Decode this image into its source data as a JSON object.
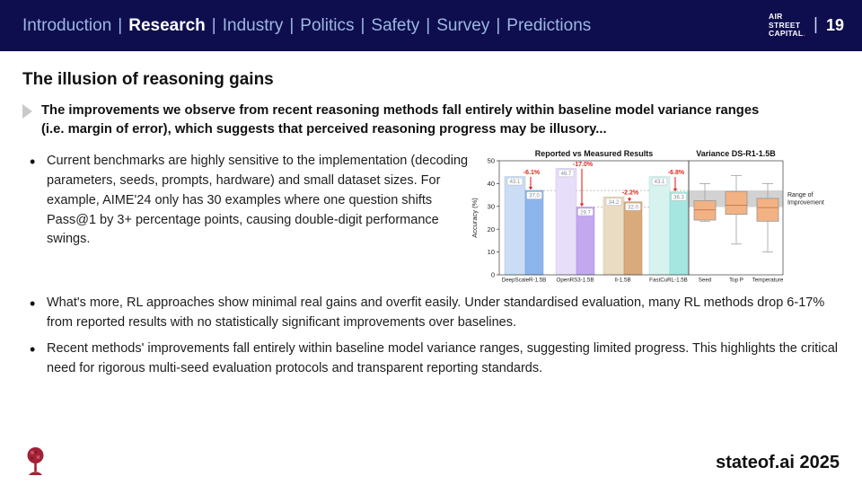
{
  "header": {
    "nav_items": [
      "Introduction",
      "Research",
      "Industry",
      "Politics",
      "Safety",
      "Survey",
      "Predictions"
    ],
    "active_item": "Research",
    "separator": "|",
    "logo_lines": [
      "AIR",
      "STREET",
      "CAPITAL"
    ],
    "logo_dot": ".",
    "page_separator": "|",
    "page_number": "19"
  },
  "slide": {
    "title": "The illusion of reasoning gains",
    "lede_lines": [
      "The improvements we observe from recent reasoning methods fall entirely within baseline model variance ranges",
      "(i.e. margin of error), which suggests that perceived reasoning progress may be illusory..."
    ],
    "bullets": [
      "Current benchmarks are highly sensitive to the implementation (decoding parameters, seeds, prompts, hardware) and small dataset sizes. For example, AIME'24 only has 30 examples where one question shifts Pass@1 by 3+ percentage points, causing double-digit performance swings.",
      "What's more, RL approaches show minimal real gains and overfit easily. Under standardised evaluation, many RL methods drop 6-17% from reported results with no statistically significant improvements over baselines.",
      "Recent methods' improvements fall entirely within baseline model variance ranges, suggesting limited progress. This highlights the critical need for rigorous multi-seed evaluation protocols and transparent reporting standards."
    ],
    "footer_brand": "stateof.ai 2025"
  },
  "chart_data": [
    {
      "type": "bar",
      "title": "Reported vs Measured Results",
      "ylabel": "Accuracy (%)",
      "ylim": [
        0,
        50
      ],
      "yticks": [
        0,
        10,
        20,
        30,
        40,
        50
      ],
      "categories": [
        "DeepScaleR-1.5B",
        "OpenRS3-1.5B",
        "II-1.5B",
        "FastCuRL-1.5B"
      ],
      "series": [
        {
          "name": "Reported",
          "values": [
            43.1,
            46.7,
            34.2,
            43.1
          ],
          "fills": [
            "#caddf5",
            "#e7def9",
            "#eadcc3",
            "#d7f3f0"
          ],
          "strokes": [
            "#a9c4e4",
            "#cfc0ef",
            "#d6c19b",
            "#b2e0da"
          ]
        },
        {
          "name": "Measured",
          "values": [
            37.0,
            29.7,
            32.0,
            36.3
          ],
          "fills": [
            "#8cb6eb",
            "#c3a8f0",
            "#d9aa7b",
            "#a5e7e0"
          ],
          "strokes": [
            "#6b9cd8",
            "#a98ae0",
            "#c08d57",
            "#83d2c9"
          ]
        }
      ],
      "deltas": [
        "-6.1%",
        "-17.0%",
        "-2.2%",
        "-6.8%"
      ],
      "delta_color": "#e4251c",
      "reference_lines": [
        37.0,
        29.7
      ],
      "label_box_text_color": "#828a92"
    },
    {
      "type": "boxplot",
      "title": "Variance DS-R1-1.5B",
      "categories": [
        "Seed",
        "Top P",
        "Temperature"
      ],
      "boxes": [
        {
          "whisker_low": 23.5,
          "q1": 24.0,
          "median": 28.5,
          "q3": 32.5,
          "whisker_high": 40.0
        },
        {
          "whisker_low": 13.5,
          "q1": 26.5,
          "median": 30.5,
          "q3": 36.5,
          "whisker_high": 43.5
        },
        {
          "whisker_low": 10.0,
          "q1": 23.5,
          "median": 29.5,
          "q3": 33.5,
          "whisker_high": 40.0
        }
      ],
      "box_fill": "#f3b283",
      "box_stroke": "#969696",
      "median_color": "#c97c52",
      "whisker_color": "#a0a0a0",
      "band": {
        "low": 29.7,
        "high": 37.0,
        "fill": "#d2d2d2",
        "label_lines": [
          "Range of",
          "Improvement"
        ]
      }
    }
  ]
}
